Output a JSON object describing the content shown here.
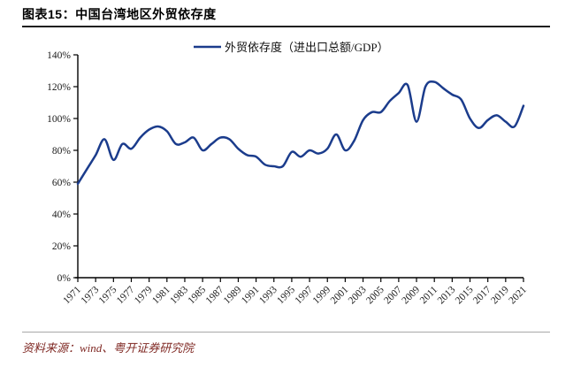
{
  "page": {
    "title": "图表15：中国台湾地区外贸依存度",
    "source": "资料来源：wind、粤开证券研究院"
  },
  "chart_data": {
    "type": "line",
    "title": "图表15：中国台湾地区外贸依存度",
    "legend_label": "外贸依存度（进出口总额/GDP）",
    "legend_position": "top-center",
    "grid": false,
    "line_color": "#1B3C8C",
    "ylim": [
      0,
      140
    ],
    "ytick_step": 20,
    "ytick_suffix": "%",
    "xtick_step": 2,
    "x": [
      1971,
      1972,
      1973,
      1974,
      1975,
      1976,
      1977,
      1978,
      1979,
      1980,
      1981,
      1982,
      1983,
      1984,
      1985,
      1986,
      1987,
      1988,
      1989,
      1990,
      1991,
      1992,
      1993,
      1994,
      1995,
      1996,
      1997,
      1998,
      1999,
      2000,
      2001,
      2002,
      2003,
      2004,
      2005,
      2006,
      2007,
      2008,
      2009,
      2010,
      2011,
      2012,
      2013,
      2014,
      2015,
      2016,
      2017,
      2018,
      2019,
      2020,
      2021
    ],
    "series": [
      {
        "name": "外贸依存度（进出口总额/GDP）",
        "unit": "%",
        "values": [
          59,
          68,
          77,
          87,
          74,
          84,
          81,
          88,
          93,
          95,
          92,
          84,
          85,
          88,
          80,
          84,
          88,
          87,
          81,
          77,
          76,
          71,
          70,
          70,
          79,
          76,
          80,
          78,
          81,
          90,
          80,
          86,
          99,
          104,
          104,
          111,
          116,
          121,
          98,
          120,
          123,
          119,
          115,
          112,
          100,
          94,
          99,
          102,
          98,
          95,
          108
        ]
      }
    ]
  }
}
